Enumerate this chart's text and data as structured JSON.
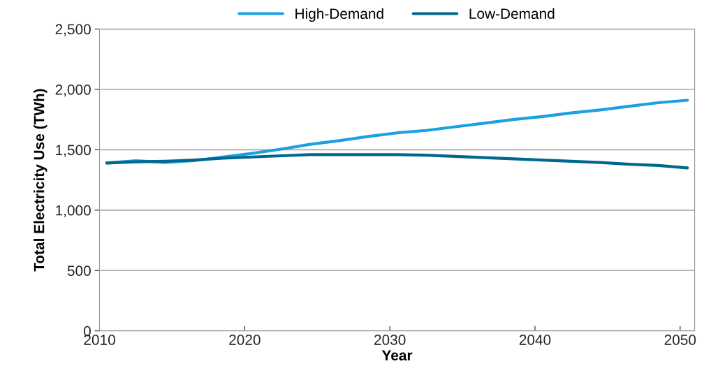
{
  "chart_data": {
    "type": "line",
    "xlabel": "Year",
    "ylabel": "Total Electricity Use (TWh)",
    "x": [
      2010.5,
      2012.5,
      2014.5,
      2016.5,
      2018.5,
      2020.5,
      2022.5,
      2024.5,
      2026.5,
      2028.5,
      2030.5,
      2032.5,
      2034.5,
      2036.5,
      2038.5,
      2040.5,
      2042.5,
      2044.5,
      2046.5,
      2048.5,
      2050.5
    ],
    "series": [
      {
        "name": "High-Demand",
        "color": "#1ba1e2",
        "values": [
          1390,
          1410,
          1395,
          1410,
          1440,
          1470,
          1505,
          1545,
          1575,
          1610,
          1640,
          1660,
          1690,
          1720,
          1750,
          1775,
          1805,
          1830,
          1860,
          1890,
          1910
        ]
      },
      {
        "name": "Low-Demand",
        "color": "#00688f",
        "values": [
          1390,
          1400,
          1405,
          1415,
          1430,
          1440,
          1450,
          1460,
          1460,
          1460,
          1460,
          1455,
          1445,
          1435,
          1425,
          1415,
          1405,
          1395,
          1380,
          1370,
          1350
        ]
      }
    ],
    "xlim": [
      2010,
      2051
    ],
    "xticks": [
      2010,
      2020,
      2030,
      2040,
      2050
    ],
    "ylim": [
      0,
      2500
    ],
    "yticks": [
      0,
      {
        "value": 500,
        "label": "500"
      },
      {
        "value": 1000,
        "label": "1,000"
      },
      {
        "value": 1500,
        "label": "1,500"
      },
      {
        "value": 2000,
        "label": "2,000"
      },
      {
        "value": 2500,
        "label": "2,500"
      }
    ],
    "grid": "y",
    "legend": "top",
    "marker": "none",
    "line_style": "solid"
  }
}
